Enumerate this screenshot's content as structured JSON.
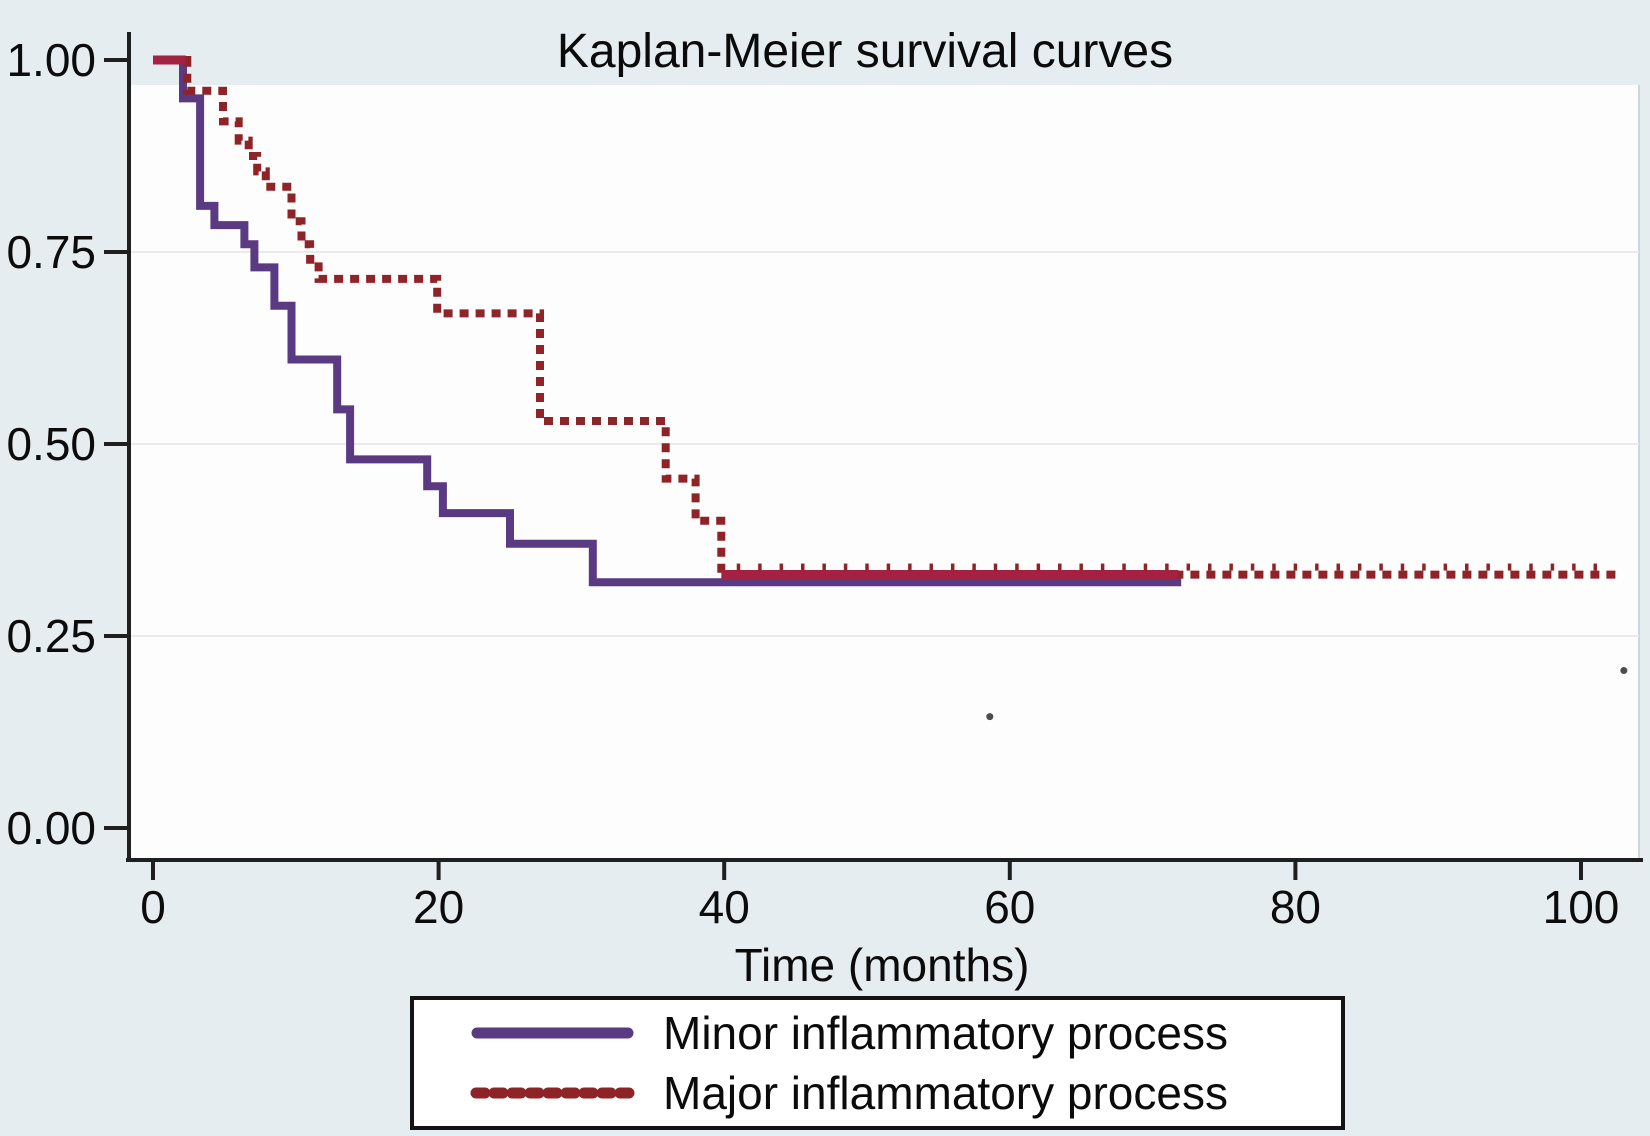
{
  "title": "Kaplan-Meier survival curves",
  "x_axis_label": "Time (months)",
  "legend": {
    "items": [
      {
        "key": "minor",
        "label": "Minor inflammatory process",
        "line_style": "solid"
      },
      {
        "key": "major",
        "label": "Major inflammatory process",
        "line_style": "dashed"
      }
    ]
  },
  "colors": {
    "minor": "#5a3a82",
    "major": "#8e2427",
    "overlap": "#a42142",
    "background": "#e5edf0",
    "plot_background": "#fdfdfd",
    "grid": "#e9ebeb",
    "axis": "#1f1f1f",
    "text": "#0c0c0c",
    "plot_right_edge": "#cdd8dc",
    "stray_mark": "#4c4c4c"
  },
  "chart_data": {
    "type": "line",
    "subtype": "kaplan-meier-step",
    "title": "Kaplan-Meier survival curves",
    "xlabel": "Time (months)",
    "ylabel": "",
    "xlim": [
      0,
      103
    ],
    "ylim": [
      0,
      1
    ],
    "grid": "horizontal-only",
    "legend_position": "below",
    "xticks": [
      {
        "value": 0,
        "label": "0"
      },
      {
        "value": 20,
        "label": "20"
      },
      {
        "value": 40,
        "label": "40"
      },
      {
        "value": 60,
        "label": "60"
      },
      {
        "value": 80,
        "label": "80"
      },
      {
        "value": 100,
        "label": "100"
      }
    ],
    "yticks": [
      {
        "value": 0.0,
        "label": "0.00"
      },
      {
        "value": 0.25,
        "label": "0.25"
      },
      {
        "value": 0.5,
        "label": "0.50"
      },
      {
        "value": 0.75,
        "label": "0.75"
      },
      {
        "value": 1.0,
        "label": "1.00"
      }
    ],
    "grid_y": [
      0.25,
      0.5,
      0.75
    ],
    "series": [
      {
        "name": "Minor inflammatory process",
        "key": "minor",
        "style": "solid",
        "steps": [
          [
            0,
            1.0
          ],
          [
            2.1,
            0.95
          ],
          [
            3.3,
            0.81
          ],
          [
            4.3,
            0.785
          ],
          [
            6.4,
            0.76
          ],
          [
            7.1,
            0.73
          ],
          [
            8.5,
            0.68
          ],
          [
            9.7,
            0.61
          ],
          [
            12.9,
            0.545
          ],
          [
            13.8,
            0.48
          ],
          [
            19.2,
            0.445
          ],
          [
            20.3,
            0.41
          ],
          [
            25.0,
            0.37
          ],
          [
            30.8,
            0.32
          ]
        ],
        "end_time": 72
      },
      {
        "name": "Major inflammatory process",
        "key": "major",
        "style": "dashed",
        "steps": [
          [
            0,
            1.0
          ],
          [
            2.4,
            0.96
          ],
          [
            4.9,
            0.92
          ],
          [
            6.0,
            0.895
          ],
          [
            6.7,
            0.875
          ],
          [
            7.3,
            0.855
          ],
          [
            7.9,
            0.835
          ],
          [
            9.7,
            0.79
          ],
          [
            10.4,
            0.76
          ],
          [
            11.0,
            0.74
          ],
          [
            11.6,
            0.715
          ],
          [
            19.9,
            0.67
          ],
          [
            27.1,
            0.53
          ],
          [
            35.9,
            0.455
          ],
          [
            38.0,
            0.4
          ],
          [
            39.8,
            0.33
          ]
        ],
        "end_time": 102.5
      }
    ],
    "overlap_segments": [
      {
        "value": 1.0,
        "start": 0,
        "end": 2.3
      },
      {
        "value": 0.33,
        "start": 39.8,
        "end": 71.8
      }
    ],
    "censor_tick_marks": {
      "series": "major",
      "value": 0.33,
      "start": 41,
      "end": 101.5,
      "interval": 1.5
    },
    "stray_marks": [
      {
        "x": 58.6,
        "y": 0.145
      },
      {
        "x": 103.0,
        "y": 0.205
      }
    ]
  }
}
